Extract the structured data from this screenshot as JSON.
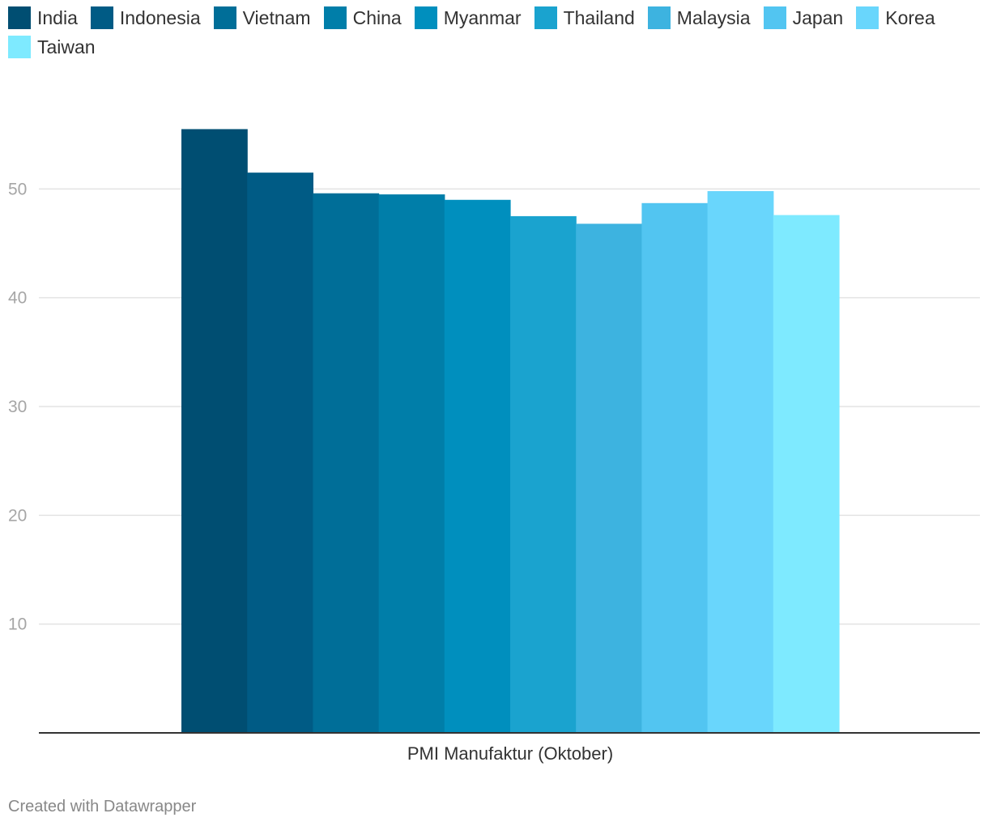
{
  "footer": {
    "credit": "Created with Datawrapper"
  },
  "chart_data": {
    "type": "bar",
    "categories": [
      "PMI Manufaktur (Oktober)"
    ],
    "series": [
      {
        "name": "India",
        "values": [
          55.5
        ],
        "color": "#004e72"
      },
      {
        "name": "Indonesia",
        "values": [
          51.5
        ],
        "color": "#005b85"
      },
      {
        "name": "Vietnam",
        "values": [
          49.6
        ],
        "color": "#006e98"
      },
      {
        "name": "China",
        "values": [
          49.5
        ],
        "color": "#007ea9"
      },
      {
        "name": "Myanmar",
        "values": [
          49.0
        ],
        "color": "#008fbe"
      },
      {
        "name": "Thailand",
        "values": [
          47.5
        ],
        "color": "#1aa3cf"
      },
      {
        "name": "Malaysia",
        "values": [
          46.8
        ],
        "color": "#3db3e0"
      },
      {
        "name": "Japan",
        "values": [
          48.7
        ],
        "color": "#52c5f1"
      },
      {
        "name": "Korea",
        "values": [
          49.8
        ],
        "color": "#69d6fc"
      },
      {
        "name": "Taiwan",
        "values": [
          47.6
        ],
        "color": "#7eeaff"
      }
    ],
    "yticks": [
      10,
      20,
      30,
      40,
      50
    ],
    "ylim": [
      0,
      60
    ],
    "grid": true,
    "legend_position": "top-left"
  }
}
